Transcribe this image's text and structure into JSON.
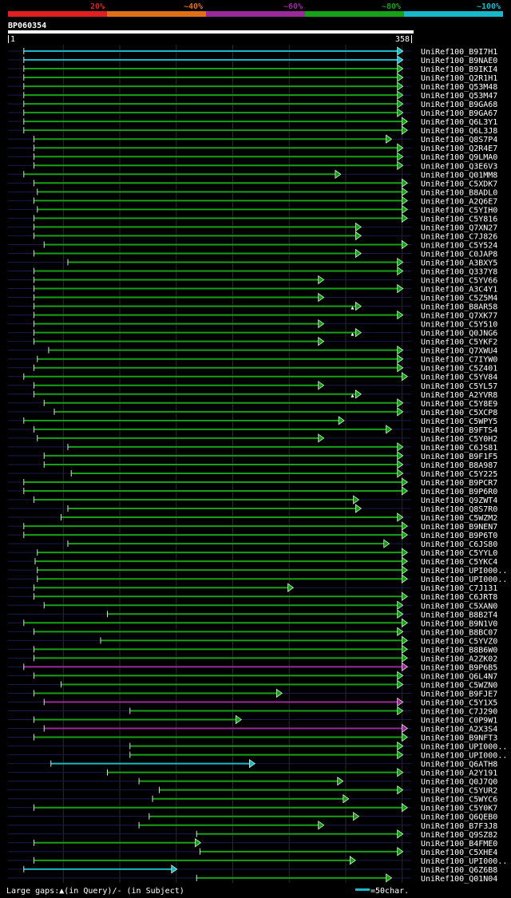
{
  "query_id": "BP060354",
  "query_length": 358,
  "ruler_start": "1",
  "ruler_end": "358",
  "identity_legend": [
    {
      "label": "20%",
      "color": "#e02020"
    },
    {
      "label": "~40%",
      "color": "#e07018"
    },
    {
      "label": "~60%",
      "color": "#9a2a9a"
    },
    {
      "label": "~80%",
      "color": "#18a018"
    },
    {
      "label": "~100%",
      "color": "#18b8c8"
    }
  ],
  "footer": {
    "gaps_note": "Large gaps:▲(in Query)/- (in Subject)",
    "scale_note": "=50char."
  },
  "chart_data": {
    "type": "alignment-overview",
    "x_unit": "query residue",
    "xlim": [
      1,
      358
    ],
    "gridlines": [
      50,
      100,
      150,
      200,
      250,
      300,
      350
    ],
    "hits": [
      {
        "label": "UniRef100_B9I7H1",
        "start": 15,
        "end": 350,
        "identity": "~100%",
        "color": "#18b8c8",
        "query_gap": null
      },
      {
        "label": "UniRef100_B9NAE0",
        "start": 15,
        "end": 350,
        "identity": "~100%",
        "color": "#18b8c8",
        "query_gap": null
      },
      {
        "label": "UniRef100_B9IKI4",
        "start": 15,
        "end": 350,
        "identity": "~80%",
        "color": "#18a018",
        "query_gap": null
      },
      {
        "label": "UniRef100_Q2R1H1",
        "start": 15,
        "end": 350,
        "identity": "~80%",
        "color": "#18a018",
        "query_gap": null
      },
      {
        "label": "UniRef100_Q53M48",
        "start": 15,
        "end": 350,
        "identity": "~80%",
        "color": "#18a018",
        "query_gap": null
      },
      {
        "label": "UniRef100_Q53M47",
        "start": 15,
        "end": 350,
        "identity": "~80%",
        "color": "#18a018",
        "query_gap": null
      },
      {
        "label": "UniRef100_B9GA68",
        "start": 15,
        "end": 350,
        "identity": "~80%",
        "color": "#18a018",
        "query_gap": null
      },
      {
        "label": "UniRef100_B9GA67",
        "start": 15,
        "end": 350,
        "identity": "~80%",
        "color": "#18a018",
        "query_gap": null
      },
      {
        "label": "UniRef100_Q6L3Y1",
        "start": 15,
        "end": 354,
        "identity": "~80%",
        "color": "#18a018",
        "query_gap": null
      },
      {
        "label": "UniRef100_Q6L3J8",
        "start": 15,
        "end": 354,
        "identity": "~80%",
        "color": "#18a018",
        "query_gap": null
      },
      {
        "label": "UniRef100_Q8S7P4",
        "start": 24,
        "end": 340,
        "identity": "~80%",
        "color": "#18a018",
        "query_gap": null
      },
      {
        "label": "UniRef100_Q2R4E7",
        "start": 24,
        "end": 350,
        "identity": "~80%",
        "color": "#18a018",
        "query_gap": null
      },
      {
        "label": "UniRef100_Q9LMA0",
        "start": 24,
        "end": 350,
        "identity": "~80%",
        "color": "#18a018",
        "query_gap": null
      },
      {
        "label": "UniRef100_Q3E6V3",
        "start": 24,
        "end": 350,
        "identity": "~80%",
        "color": "#18a018",
        "query_gap": null
      },
      {
        "label": "UniRef100_Q01MM8",
        "start": 15,
        "end": 295,
        "identity": "~80%",
        "color": "#18a018",
        "query_gap": null
      },
      {
        "label": "UniRef100_C5XDK7",
        "start": 24,
        "end": 354,
        "identity": "~80%",
        "color": "#18a018",
        "query_gap": null
      },
      {
        "label": "UniRef100_B8ADL0",
        "start": 27,
        "end": 354,
        "identity": "~80%",
        "color": "#18a018",
        "query_gap": null
      },
      {
        "label": "UniRef100_A2Q6E7",
        "start": 24,
        "end": 354,
        "identity": "~80%",
        "color": "#18a018",
        "query_gap": null
      },
      {
        "label": "UniRef100_C5YIH0",
        "start": 27,
        "end": 354,
        "identity": "~80%",
        "color": "#18a018",
        "query_gap": null
      },
      {
        "label": "UniRef100_C5Y816",
        "start": 24,
        "end": 354,
        "identity": "~80%",
        "color": "#18a018",
        "query_gap": null
      },
      {
        "label": "UniRef100_Q7XN27",
        "start": 24,
        "end": 313,
        "identity": "~80%",
        "color": "#18a018",
        "query_gap": null
      },
      {
        "label": "UniRef100_C7J826",
        "start": 24,
        "end": 313,
        "identity": "~80%",
        "color": "#18a018",
        "query_gap": null
      },
      {
        "label": "UniRef100_C5Y524",
        "start": 33,
        "end": 354,
        "identity": "~80%",
        "color": "#18a018",
        "query_gap": null
      },
      {
        "label": "UniRef100_C0JAP8",
        "start": 24,
        "end": 313,
        "identity": "~80%",
        "color": "#18a018",
        "query_gap": null
      },
      {
        "label": "UniRef100_A3BXY5",
        "start": 54,
        "end": 350,
        "identity": "~80%",
        "color": "#18a018",
        "query_gap": null
      },
      {
        "label": "UniRef100_Q337Y8",
        "start": 24,
        "end": 350,
        "identity": "~80%",
        "color": "#18a018",
        "query_gap": null
      },
      {
        "label": "UniRef100_C5YV66",
        "start": 24,
        "end": 280,
        "identity": "~80%",
        "color": "#18a018",
        "query_gap": null
      },
      {
        "label": "UniRef100_A3C4Y1",
        "start": 24,
        "end": 350,
        "identity": "~80%",
        "color": "#18a018",
        "query_gap": null
      },
      {
        "label": "UniRef100_C5Z5M4",
        "start": 24,
        "end": 280,
        "identity": "~80%",
        "color": "#18a018",
        "query_gap": null
      },
      {
        "label": "UniRef100_B8AR58",
        "start": 24,
        "end": 313,
        "identity": "~80%",
        "color": "#18a018",
        "query_gap": 306
      },
      {
        "label": "UniRef100_Q7XK77",
        "start": 24,
        "end": 350,
        "identity": "~80%",
        "color": "#18a018",
        "query_gap": null
      },
      {
        "label": "UniRef100_C5Y510",
        "start": 24,
        "end": 280,
        "identity": "~80%",
        "color": "#18a018",
        "query_gap": null
      },
      {
        "label": "UniRef100_Q0JNG6",
        "start": 24,
        "end": 313,
        "identity": "~80%",
        "color": "#18a018",
        "query_gap": 306
      },
      {
        "label": "UniRef100_C5YKF2",
        "start": 24,
        "end": 280,
        "identity": "~80%",
        "color": "#18a018",
        "query_gap": null
      },
      {
        "label": "UniRef100_Q7XWU4",
        "start": 37,
        "end": 350,
        "identity": "~80%",
        "color": "#18a018",
        "query_gap": null
      },
      {
        "label": "UniRef100_C7IYW0",
        "start": 27,
        "end": 350,
        "identity": "~80%",
        "color": "#18a018",
        "query_gap": null
      },
      {
        "label": "UniRef100_C5Z401",
        "start": 24,
        "end": 350,
        "identity": "~80%",
        "color": "#18a018",
        "query_gap": null
      },
      {
        "label": "UniRef100_C5YV84",
        "start": 15,
        "end": 354,
        "identity": "~80%",
        "color": "#18a018",
        "query_gap": null
      },
      {
        "label": "UniRef100_C5YL57",
        "start": 24,
        "end": 280,
        "identity": "~80%",
        "color": "#18a018",
        "query_gap": null
      },
      {
        "label": "UniRef100_A2YVR8",
        "start": 24,
        "end": 313,
        "identity": "~80%",
        "color": "#18a018",
        "query_gap": 306
      },
      {
        "label": "UniRef100_C5Y8E9",
        "start": 33,
        "end": 350,
        "identity": "~80%",
        "color": "#18a018",
        "query_gap": null
      },
      {
        "label": "UniRef100_C5XCP8",
        "start": 42,
        "end": 350,
        "identity": "~80%",
        "color": "#18a018",
        "query_gap": null
      },
      {
        "label": "UniRef100_C5WPY5",
        "start": 15,
        "end": 298,
        "identity": "~80%",
        "color": "#18a018",
        "query_gap": null
      },
      {
        "label": "UniRef100_B9FTS4",
        "start": 24,
        "end": 340,
        "identity": "~80%",
        "color": "#18a018",
        "query_gap": null
      },
      {
        "label": "UniRef100_C5Y0H2",
        "start": 27,
        "end": 280,
        "identity": "~80%",
        "color": "#18a018",
        "query_gap": null
      },
      {
        "label": "UniRef100_C6JS81",
        "start": 54,
        "end": 350,
        "identity": "~80%",
        "color": "#18a018",
        "query_gap": null
      },
      {
        "label": "UniRef100_B9F1F5",
        "start": 33,
        "end": 350,
        "identity": "~80%",
        "color": "#18a018",
        "query_gap": null
      },
      {
        "label": "UniRef100_B8A987",
        "start": 33,
        "end": 350,
        "identity": "~80%",
        "color": "#18a018",
        "query_gap": null
      },
      {
        "label": "UniRef100_C5Y225",
        "start": 57,
        "end": 350,
        "identity": "~80%",
        "color": "#18a018",
        "query_gap": null
      },
      {
        "label": "UniRef100_B9PCR7",
        "start": 15,
        "end": 354,
        "identity": "~80%",
        "color": "#18a018",
        "query_gap": null
      },
      {
        "label": "UniRef100_B9P6R0",
        "start": 15,
        "end": 354,
        "identity": "~80%",
        "color": "#18a018",
        "query_gap": null
      },
      {
        "label": "UniRef100_Q9ZWT4",
        "start": 24,
        "end": 311,
        "identity": "~80%",
        "color": "#18a018",
        "query_gap": null
      },
      {
        "label": "UniRef100_Q8S7R0",
        "start": 54,
        "end": 313,
        "identity": "~80%",
        "color": "#18a018",
        "query_gap": null
      },
      {
        "label": "UniRef100_C5WZM2",
        "start": 48,
        "end": 350,
        "identity": "~80%",
        "color": "#18a018",
        "query_gap": null
      },
      {
        "label": "UniRef100_B9NEN7",
        "start": 15,
        "end": 354,
        "identity": "~80%",
        "color": "#18a018",
        "query_gap": null
      },
      {
        "label": "UniRef100_B9P6T0",
        "start": 15,
        "end": 354,
        "identity": "~80%",
        "color": "#18a018",
        "query_gap": null
      },
      {
        "label": "UniRef100_C6JS80",
        "start": 54,
        "end": 338,
        "identity": "~80%",
        "color": "#18a018",
        "query_gap": null
      },
      {
        "label": "UniRef100_C5YYL0",
        "start": 27,
        "end": 354,
        "identity": "~80%",
        "color": "#18a018",
        "query_gap": null
      },
      {
        "label": "UniRef100_C5YKC4",
        "start": 25,
        "end": 354,
        "identity": "~80%",
        "color": "#18a018",
        "query_gap": null
      },
      {
        "label": "UniRef100_UPI000..",
        "start": 27,
        "end": 354,
        "identity": "~80%",
        "color": "#18a018",
        "query_gap": null
      },
      {
        "label": "UniRef100_UPI000..",
        "start": 27,
        "end": 354,
        "identity": "~80%",
        "color": "#18a018",
        "query_gap": null
      },
      {
        "label": "UniRef100_C7J131",
        "start": 24,
        "end": 253,
        "identity": "~80%",
        "color": "#18a018",
        "query_gap": null
      },
      {
        "label": "UniRef100_C6JRT8",
        "start": 24,
        "end": 354,
        "identity": "~80%",
        "color": "#18a018",
        "query_gap": null
      },
      {
        "label": "UniRef100_C5XAN0",
        "start": 33,
        "end": 350,
        "identity": "~80%",
        "color": "#18a018",
        "query_gap": null
      },
      {
        "label": "UniRef100_B8B2T4",
        "start": 89,
        "end": 350,
        "identity": "~80%",
        "color": "#18a018",
        "query_gap": null
      },
      {
        "label": "UniRef100_B9N1V0",
        "start": 15,
        "end": 354,
        "identity": "~80%",
        "color": "#18a018",
        "query_gap": null
      },
      {
        "label": "UniRef100_B8BC07",
        "start": 24,
        "end": 350,
        "identity": "~80%",
        "color": "#18a018",
        "query_gap": null
      },
      {
        "label": "UniRef100_C5YVZ0",
        "start": 83,
        "end": 354,
        "identity": "~80%",
        "color": "#18a018",
        "query_gap": null
      },
      {
        "label": "UniRef100_B8B6W0",
        "start": 24,
        "end": 354,
        "identity": "~80%",
        "color": "#18a018",
        "query_gap": null
      },
      {
        "label": "UniRef100_A2ZK02",
        "start": 24,
        "end": 354,
        "identity": "~80%",
        "color": "#18a018",
        "query_gap": null
      },
      {
        "label": "UniRef100_B9P6B5",
        "start": 15,
        "end": 354,
        "identity": "~60%",
        "color": "#9a2a9a",
        "query_gap": null
      },
      {
        "label": "UniRef100_Q6L4N7",
        "start": 24,
        "end": 350,
        "identity": "~80%",
        "color": "#18a018",
        "query_gap": null
      },
      {
        "label": "UniRef100_C5WZN0",
        "start": 48,
        "end": 350,
        "identity": "~80%",
        "color": "#18a018",
        "query_gap": null
      },
      {
        "label": "UniRef100_B9FJE7",
        "start": 24,
        "end": 243,
        "identity": "~80%",
        "color": "#18a018",
        "query_gap": null
      },
      {
        "label": "UniRef100_C5Y1X5",
        "start": 33,
        "end": 350,
        "identity": "~60%",
        "color": "#9a2a9a",
        "query_gap": null
      },
      {
        "label": "UniRef100_C7J290",
        "start": 109,
        "end": 350,
        "identity": "~80%",
        "color": "#18a018",
        "query_gap": null
      },
      {
        "label": "UniRef100_C0P9W1",
        "start": 24,
        "end": 207,
        "identity": "~80%",
        "color": "#18a018",
        "query_gap": null
      },
      {
        "label": "UniRef100_A2X3S4",
        "start": 33,
        "end": 354,
        "identity": "~60%",
        "color": "#9a2a9a",
        "query_gap": null
      },
      {
        "label": "UniRef100_B9NFT3",
        "start": 24,
        "end": 354,
        "identity": "~80%",
        "color": "#18a018",
        "query_gap": null
      },
      {
        "label": "UniRef100_UPI000..",
        "start": 109,
        "end": 350,
        "identity": "~80%",
        "color": "#18a018",
        "query_gap": null
      },
      {
        "label": "UniRef100_UPI000..",
        "start": 109,
        "end": 350,
        "identity": "~80%",
        "color": "#18a018",
        "query_gap": null
      },
      {
        "label": "UniRef100_Q6ATH8",
        "start": 39,
        "end": 219,
        "identity": "~100%",
        "color": "#18b8c8",
        "query_gap": null
      },
      {
        "label": "UniRef100_A2Y191",
        "start": 89,
        "end": 350,
        "identity": "~80%",
        "color": "#18a018",
        "query_gap": null
      },
      {
        "label": "UniRef100_Q0J7Q0",
        "start": 117,
        "end": 297,
        "identity": "~80%",
        "color": "#18a018",
        "query_gap": null
      },
      {
        "label": "UniRef100_C5YUR2",
        "start": 135,
        "end": 350,
        "identity": "~80%",
        "color": "#18a018",
        "query_gap": null
      },
      {
        "label": "UniRef100_C5WYC6",
        "start": 129,
        "end": 302,
        "identity": "~80%",
        "color": "#18a018",
        "query_gap": null
      },
      {
        "label": "UniRef100_C5Y0K7",
        "start": 24,
        "end": 354,
        "identity": "~80%",
        "color": "#18a018",
        "query_gap": null
      },
      {
        "label": "UniRef100_Q6QEB0",
        "start": 126,
        "end": 311,
        "identity": "~80%",
        "color": "#18a018",
        "query_gap": null
      },
      {
        "label": "UniRef100_B7F3J8",
        "start": 117,
        "end": 280,
        "identity": "~80%",
        "color": "#18a018",
        "query_gap": null
      },
      {
        "label": "UniRef100_Q9SZ82",
        "start": 168,
        "end": 350,
        "identity": "~80%",
        "color": "#18a018",
        "query_gap": null
      },
      {
        "label": "UniRef100_B4FME0",
        "start": 24,
        "end": 171,
        "identity": "~80%",
        "color": "#18a018",
        "query_gap": null
      },
      {
        "label": "UniRef100_C5XHE4",
        "start": 171,
        "end": 350,
        "identity": "~80%",
        "color": "#18a018",
        "query_gap": null
      },
      {
        "label": "UniRef100_UPI000..",
        "start": 24,
        "end": 308,
        "identity": "~80%",
        "color": "#18a018",
        "query_gap": null
      },
      {
        "label": "UniRef100_Q6Z6B8",
        "start": 15,
        "end": 150,
        "identity": "~100%",
        "color": "#18b8c8",
        "query_gap": null
      },
      {
        "label": "UniRef100_Q01N04",
        "start": 168,
        "end": 340,
        "identity": "~80%",
        "color": "#18a018",
        "query_gap": null
      }
    ]
  }
}
